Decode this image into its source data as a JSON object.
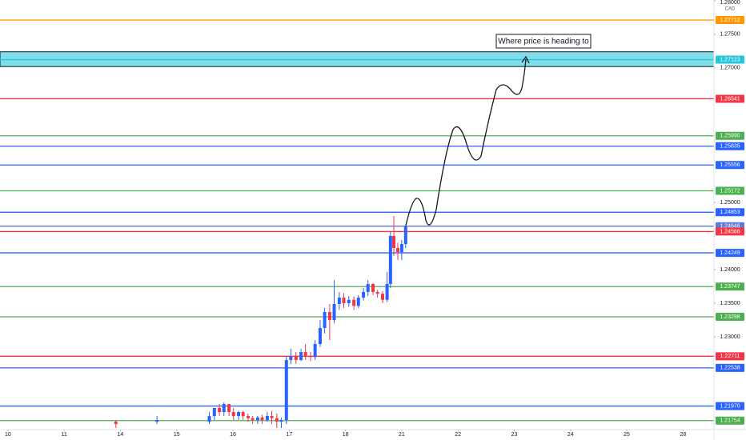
{
  "chart_data": {
    "type": "candlestick",
    "currency": "CAD",
    "annotations": [
      {
        "text": "Where price is heading to"
      }
    ],
    "xlim": [
      -0.14,
      12.55
    ],
    "ylim": [
      1.2162,
      1.2801
    ],
    "xticks": [
      {
        "value": 0,
        "label": "10"
      },
      {
        "value": 1,
        "label": "11"
      },
      {
        "value": 2,
        "label": "14"
      },
      {
        "value": 3,
        "label": "15"
      },
      {
        "value": 4,
        "label": "16"
      },
      {
        "value": 5,
        "label": "17"
      },
      {
        "value": 6,
        "label": "18"
      },
      {
        "value": 7,
        "label": "21"
      },
      {
        "value": 8,
        "label": "22"
      },
      {
        "value": 9,
        "label": "23"
      },
      {
        "value": 10,
        "label": "24"
      },
      {
        "value": 11,
        "label": "25"
      },
      {
        "value": 12,
        "label": "28"
      }
    ],
    "yticks": [
      {
        "value": 1.28,
        "label": "1.28000"
      },
      {
        "value": 1.275,
        "label": "1.27500"
      },
      {
        "value": 1.27,
        "label": "1.27000"
      },
      {
        "value": 1.25,
        "label": "1.25000"
      },
      {
        "value": 1.24,
        "label": "1.24000"
      },
      {
        "value": 1.235,
        "label": "1.23500"
      },
      {
        "value": 1.23,
        "label": "1.23000"
      }
    ],
    "up_color": "#2962ff",
    "down_color": "#f23645",
    "zone": {
      "top": 1.2724,
      "bottom": 1.2702,
      "color": "#80deea"
    },
    "levels": [
      {
        "value": 1.27712,
        "label": "1.27712",
        "color": "#ff9800"
      },
      {
        "value": 1.27123,
        "label": "1.27123",
        "color": "#26c6da"
      },
      {
        "value": 1.26541,
        "label": "1.26541",
        "color": "#f23645"
      },
      {
        "value": 1.2599,
        "label": "1.25990",
        "color": "#4caf50"
      },
      {
        "value": 1.25835,
        "label": "1.25835",
        "color": "#2962ff"
      },
      {
        "value": 1.25556,
        "label": "1.25556",
        "color": "#2962ff"
      },
      {
        "value": 1.25172,
        "label": "1.25172",
        "color": "#4caf50"
      },
      {
        "value": 1.24853,
        "label": "1.24853",
        "color": "#2962ff"
      },
      {
        "value": 1.24646,
        "label": "1.24646",
        "color": "#5b7bd5"
      },
      {
        "value": 1.24566,
        "label": "1.24566",
        "color": "#f23645"
      },
      {
        "value": 1.24249,
        "label": "1.24249",
        "color": "#2962ff"
      },
      {
        "value": 1.23747,
        "label": "1.23747",
        "color": "#4caf50"
      },
      {
        "value": 1.23298,
        "label": "1.23298",
        "color": "#4caf50"
      },
      {
        "value": 1.22711,
        "label": "1.22711",
        "color": "#f23645"
      },
      {
        "value": 1.22538,
        "label": "1.22538",
        "color": "#2962ff"
      },
      {
        "value": 1.2197,
        "label": "1.21970",
        "color": "#2962ff"
      },
      {
        "value": 1.21754,
        "label": "1.21754",
        "color": "#4caf50"
      }
    ],
    "x": [
      1.92,
      2.65,
      3.58,
      3.67,
      3.76,
      3.84,
      3.93,
      4.01,
      4.1,
      4.18,
      4.27,
      4.35,
      4.44,
      4.52,
      4.61,
      4.69,
      4.78,
      4.86,
      4.95,
      5.03,
      5.12,
      5.21,
      5.29,
      5.38,
      5.46,
      5.55,
      5.63,
      5.72,
      5.8,
      5.89,
      5.97,
      6.06,
      6.15,
      6.23,
      6.32,
      6.4,
      6.49,
      6.57,
      6.66,
      6.74,
      6.8,
      6.86,
      6.93,
      7.0,
      7.07
    ],
    "open": [
      1.21738,
      1.21738,
      1.21738,
      1.21822,
      1.21941,
      1.21881,
      1.22,
      1.21881,
      1.21822,
      1.21881,
      1.21822,
      1.2179,
      1.21762,
      1.218,
      1.21762,
      1.21822,
      1.2179,
      1.21738,
      1.21762,
      1.22655,
      1.22715,
      1.22655,
      1.22774,
      1.22715,
      1.227,
      1.22893,
      1.23131,
      1.23369,
      1.2325,
      1.23488,
      1.23583,
      1.235,
      1.2355,
      1.2346,
      1.23583,
      1.23667,
      1.23786,
      1.23667,
      1.2364,
      1.2355,
      1.23786,
      1.245,
      1.24321,
      1.2426,
      1.2438
    ],
    "high": [
      1.21762,
      1.21822,
      1.21881,
      1.21941,
      1.22,
      1.22024,
      1.22,
      1.21941,
      1.219,
      1.219,
      1.2186,
      1.21822,
      1.21822,
      1.2184,
      1.21881,
      1.219,
      1.2186,
      1.218,
      1.22715,
      1.22821,
      1.22774,
      1.22821,
      1.22893,
      1.22774,
      1.22952,
      1.2325,
      1.23429,
      1.23488,
      1.23845,
      1.23667,
      1.2365,
      1.23607,
      1.236,
      1.2362,
      1.23726,
      1.23845,
      1.238,
      1.237,
      1.2368,
      1.23964,
      1.2456,
      1.24798,
      1.244,
      1.24441,
      1.2466
    ],
    "low": [
      1.21643,
      1.21702,
      1.21702,
      1.21762,
      1.21822,
      1.21822,
      1.21822,
      1.21762,
      1.21762,
      1.21762,
      1.21738,
      1.21702,
      1.21702,
      1.21702,
      1.21738,
      1.21702,
      1.21643,
      1.21643,
      1.21702,
      1.22595,
      1.22595,
      1.2264,
      1.22655,
      1.2264,
      1.22655,
      1.2285,
      1.2305,
      1.22952,
      1.232,
      1.234,
      1.23429,
      1.2345,
      1.234,
      1.23429,
      1.2354,
      1.23607,
      1.2362,
      1.23583,
      1.235,
      1.2352,
      1.23726,
      1.24202,
      1.24143,
      1.24143,
      1.24321
    ],
    "close": [
      1.21702,
      1.21762,
      1.21822,
      1.21941,
      1.21881,
      1.22,
      1.21881,
      1.21822,
      1.21881,
      1.21822,
      1.2179,
      1.21762,
      1.218,
      1.21762,
      1.21822,
      1.2179,
      1.21738,
      1.21762,
      1.22655,
      1.22715,
      1.22655,
      1.22774,
      1.22715,
      1.227,
      1.22893,
      1.23131,
      1.23369,
      1.2325,
      1.23488,
      1.23583,
      1.235,
      1.2355,
      1.2346,
      1.23583,
      1.23667,
      1.23786,
      1.23667,
      1.2364,
      1.2355,
      1.23786,
      1.245,
      1.24321,
      1.2426,
      1.2438,
      1.24646
    ]
  }
}
